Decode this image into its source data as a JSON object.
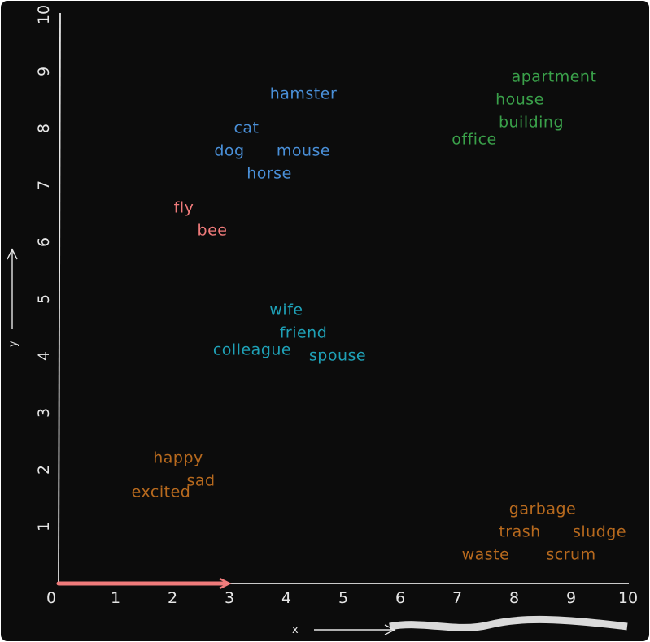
{
  "chart_data": {
    "type": "scatter",
    "xlabel": "x",
    "ylabel": "y",
    "xlim": [
      0,
      10
    ],
    "ylim": [
      0,
      10
    ],
    "x_ticks": [
      "0",
      "1",
      "2",
      "3",
      "4",
      "5",
      "6",
      "7",
      "8",
      "9",
      "10"
    ],
    "y_ticks": [
      "1",
      "2",
      "3",
      "4",
      "5",
      "6",
      "7",
      "8",
      "9",
      "10"
    ],
    "grid": false,
    "background": "#0c0c0c",
    "axis_color": "#e6e6e6",
    "highlight_vector": {
      "from": [
        0,
        0
      ],
      "to": [
        3,
        0
      ],
      "color": "#f07b7b"
    },
    "groups": [
      {
        "color": "#4a90d9",
        "points": [
          {
            "label": "hamster",
            "x": 4.3,
            "y": 8.6
          },
          {
            "label": "cat",
            "x": 3.3,
            "y": 8.0
          },
          {
            "label": "dog",
            "x": 3.0,
            "y": 7.6
          },
          {
            "label": "mouse",
            "x": 4.3,
            "y": 7.6
          },
          {
            "label": "horse",
            "x": 3.7,
            "y": 7.2
          }
        ]
      },
      {
        "color": "#3aa14a",
        "points": [
          {
            "label": "apartment",
            "x": 8.7,
            "y": 8.9
          },
          {
            "label": "house",
            "x": 8.1,
            "y": 8.5
          },
          {
            "label": "building",
            "x": 8.3,
            "y": 8.1
          },
          {
            "label": "office",
            "x": 7.3,
            "y": 7.8
          }
        ]
      },
      {
        "color": "#f07b7b",
        "points": [
          {
            "label": "fly",
            "x": 2.2,
            "y": 6.6
          },
          {
            "label": "bee",
            "x": 2.7,
            "y": 6.2
          }
        ]
      },
      {
        "color": "#1fa2b8",
        "points": [
          {
            "label": "wife",
            "x": 4.0,
            "y": 4.8
          },
          {
            "label": "friend",
            "x": 4.3,
            "y": 4.4
          },
          {
            "label": "colleague",
            "x": 3.4,
            "y": 4.1
          },
          {
            "label": "spouse",
            "x": 4.9,
            "y": 4.0
          }
        ]
      },
      {
        "color": "#b86a1e",
        "points": [
          {
            "label": "happy",
            "x": 2.1,
            "y": 2.2
          },
          {
            "label": "sad",
            "x": 2.5,
            "y": 1.8
          },
          {
            "label": "excited",
            "x": 1.8,
            "y": 1.6
          },
          {
            "label": "garbage",
            "x": 8.5,
            "y": 1.3
          },
          {
            "label": "trash",
            "x": 8.1,
            "y": 0.9
          },
          {
            "label": "sludge",
            "x": 9.5,
            "y": 0.9
          },
          {
            "label": "waste",
            "x": 7.5,
            "y": 0.5
          },
          {
            "label": "scrum",
            "x": 9.0,
            "y": 0.5
          }
        ]
      }
    ]
  }
}
